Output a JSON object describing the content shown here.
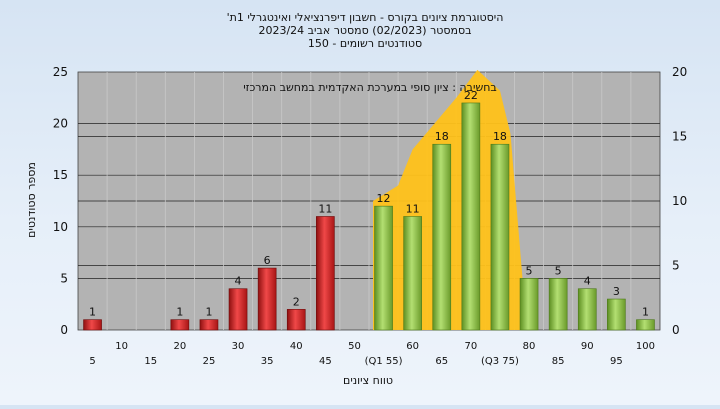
{
  "chart_data": {
    "type": "bar",
    "title_lines": [
      "היסטוגרמת ציונים בקורס - חשבון דיפרנציאלי ואינטגרלי 1ת'",
      "בסמסטר  (02/2023)  סמסטר אביב 2023/24",
      "סטודנטים רשומים - 150"
    ],
    "annotation": "בחשיבה : ציון סופי במערכת האקדמית במחשב המרכזי",
    "ylabel": "מספר סטודנטים",
    "xlabel": "טווח ציונים",
    "ylim": [
      0,
      25
    ],
    "yticks": [
      0,
      5,
      10,
      15,
      20,
      25
    ],
    "y2lim": [
      0,
      20
    ],
    "y2ticks": [
      0,
      5,
      10,
      15,
      20
    ],
    "grid": true,
    "x": [
      5,
      10,
      15,
      20,
      25,
      30,
      35,
      40,
      45,
      50,
      55,
      60,
      65,
      70,
      75,
      80,
      85,
      90,
      95,
      100
    ],
    "xtick_labels": [
      "5",
      "10",
      "15",
      "20",
      "25",
      "30",
      "35",
      "40",
      "45",
      "50",
      "(Q1 55)",
      "60",
      "65",
      "70",
      "(Q3 75)",
      "80",
      "85",
      "90",
      "95",
      "100"
    ],
    "values": [
      1,
      0,
      0,
      1,
      1,
      4,
      6,
      2,
      11,
      0,
      12,
      11,
      18,
      22,
      18,
      5,
      5,
      4,
      3,
      1
    ],
    "data_labels": [
      "1",
      "",
      "",
      "1",
      "1",
      "4",
      "6",
      "2",
      "11",
      "",
      "12",
      "11",
      "18",
      "22",
      "18",
      "5",
      "5",
      "4",
      "3",
      "1"
    ],
    "colors": {
      "fail": "#d42a2a",
      "pass": "#8cc24a",
      "area": "#ffc21a",
      "plot_bg": "#b3b3b3"
    }
  }
}
